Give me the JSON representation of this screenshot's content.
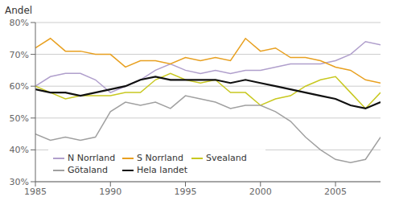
{
  "chart_data": {
    "type": "line",
    "ylabel": "Andel",
    "x": [
      1985,
      1986,
      1987,
      1988,
      1989,
      1990,
      1991,
      1992,
      1993,
      1994,
      1995,
      1996,
      1997,
      1998,
      1999,
      2000,
      2001,
      2002,
      2003,
      2004,
      2005,
      2006,
      2007,
      2008
    ],
    "series": [
      {
        "name": "N Norrland",
        "color": "#b09fcc",
        "values": [
          60,
          63,
          64,
          64,
          62,
          58,
          60,
          62,
          65,
          67,
          65,
          64,
          65,
          64,
          65,
          65,
          66,
          67,
          67,
          67,
          68,
          70,
          74,
          73
        ]
      },
      {
        "name": "S Norrland",
        "color": "#e8a020",
        "values": [
          72,
          75,
          71,
          71,
          70,
          70,
          66,
          68,
          68,
          67,
          69,
          68,
          69,
          68,
          75,
          71,
          72,
          69,
          69,
          68,
          66,
          65,
          62,
          61
        ]
      },
      {
        "name": "Svealand",
        "color": "#c8c820",
        "values": [
          60,
          58,
          56,
          57,
          57,
          57,
          58,
          58,
          62,
          64,
          62,
          61,
          62,
          58,
          58,
          54,
          56,
          57,
          60,
          62,
          63,
          58,
          53,
          58
        ]
      },
      {
        "name": "Götaland",
        "color": "#a0a0a0",
        "values": [
          45,
          43,
          44,
          43,
          44,
          52,
          55,
          54,
          55,
          53,
          57,
          56,
          55,
          53,
          54,
          54,
          52,
          49,
          44,
          40,
          37,
          36,
          37,
          44
        ]
      },
      {
        "name": "Hela landet",
        "color": "#101010",
        "values": [
          59,
          58,
          58,
          57,
          58,
          59,
          60,
          62,
          63,
          62,
          62,
          62,
          62,
          61,
          62,
          61,
          60,
          59,
          58,
          57,
          56,
          54,
          53,
          55
        ]
      }
    ],
    "ylim": [
      30,
      80
    ],
    "yticks": [
      {
        "value": 30,
        "label": "30%"
      },
      {
        "value": 40,
        "label": "40%"
      },
      {
        "value": 50,
        "label": "50%"
      },
      {
        "value": 60,
        "label": "60%"
      },
      {
        "value": 70,
        "label": "70%"
      },
      {
        "value": 80,
        "label": "80%"
      }
    ],
    "xlim": [
      1985,
      2008
    ],
    "xticks": [
      1985,
      1990,
      1995,
      2000,
      2005
    ],
    "grid": "y",
    "legend": "lower left"
  }
}
